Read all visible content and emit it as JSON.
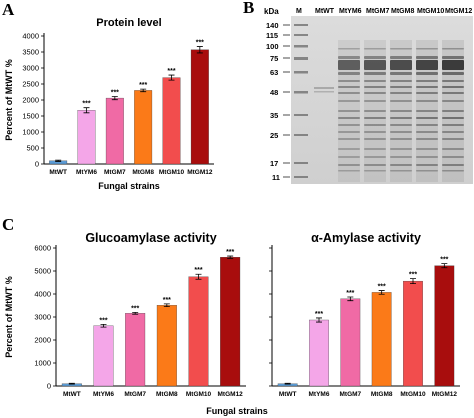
{
  "panels": {
    "A": "A",
    "B": "B",
    "C": "C"
  },
  "colors": {
    "MtWT": "#5b9bd5",
    "MtYM6": "#f4a6e8",
    "MtGM7": "#f06aa5",
    "MtGM8": "#fb7a18",
    "MtGM10": "#f24d4d",
    "MtGM12": "#a80d0d",
    "bar_outline": "#333333"
  },
  "chart_data": [
    {
      "id": "protein",
      "type": "bar",
      "title": "Protein level",
      "xlabel": "Fungal strains",
      "ylabel": "Percent of MtWT %",
      "categories": [
        "MtWT",
        "MtYM6",
        "MtGM7",
        "MtGM8",
        "MtGM10",
        "MtGM12"
      ],
      "values": [
        100,
        1680,
        2060,
        2300,
        2700,
        3570
      ],
      "errors": [
        20,
        80,
        50,
        40,
        80,
        100
      ],
      "significance": [
        "",
        "***",
        "***",
        "***",
        "***",
        "***"
      ],
      "ylim": [
        0,
        4000
      ],
      "yticks": [
        0,
        500,
        1000,
        1500,
        2000,
        2500,
        3000,
        3500,
        4000
      ],
      "grid": false,
      "legend": "none"
    },
    {
      "id": "glucoamylase",
      "type": "bar",
      "title": "Glucoamylase activity",
      "xlabel": "Fungal strains",
      "ylabel": "Percent of MtWT %",
      "categories": [
        "MtWT",
        "MtYM6",
        "MtGM7",
        "MtGM8",
        "MtGM10",
        "MtGM12"
      ],
      "values": [
        100,
        2620,
        3160,
        3510,
        4750,
        5600
      ],
      "errors": [
        20,
        60,
        40,
        60,
        110,
        50
      ],
      "significance": [
        "",
        "***",
        "***",
        "***",
        "***",
        "***"
      ],
      "ylim": [
        0,
        6000
      ],
      "yticks": [
        0,
        1000,
        2000,
        3000,
        4000,
        5000,
        6000
      ],
      "grid": false,
      "legend": "none"
    },
    {
      "id": "amylase",
      "type": "bar",
      "title": "α-Amylase activity",
      "xlabel": "Fungal strains",
      "ylabel": "Percent of MtWT %",
      "categories": [
        "MtWT",
        "MtYM6",
        "MtGM7",
        "MtGM8",
        "MtGM10",
        "MtGM12"
      ],
      "values": [
        100,
        2870,
        3790,
        4070,
        4560,
        5230
      ],
      "errors": [
        20,
        90,
        80,
        80,
        110,
        90
      ],
      "significance": [
        "",
        "***",
        "***",
        "***",
        "***",
        "***"
      ],
      "ylim": [
        0,
        6000
      ],
      "yticks": [
        0,
        1000,
        2000,
        3000,
        4000,
        5000,
        6000
      ],
      "grid": false,
      "legend": "none"
    }
  ],
  "gel": {
    "unit_label": "kDa",
    "marker_label": "M",
    "lanes": [
      "MtWT",
      "MtYM6",
      "MtGM7",
      "MtGM8",
      "MtGM10",
      "MtGM12"
    ],
    "markers_kda": [
      "140",
      "115",
      "100",
      "75",
      "63",
      "48",
      "35",
      "25",
      "17",
      "11"
    ]
  }
}
